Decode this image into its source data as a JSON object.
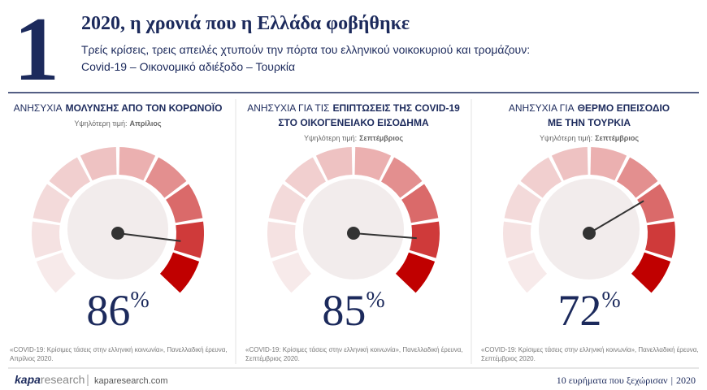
{
  "header": {
    "number": "1",
    "title": "2020, η χρονιά που η Ελλάδα φοβήθηκε",
    "subtitle_lines": [
      "Τρείς κρίσεις, τρεις απειλές χτυπούν την πόρτα του ελληνικού νοικοκυριού και τρομάζουν:",
      "Covid-19 – Οικονομικό αδιέξοδο – Τουρκία"
    ]
  },
  "gauge_range": [
    0,
    100
  ],
  "panels": [
    {
      "title_plain": "ΑΝΗΣΥΧΙΑ",
      "title_bold": [
        "ΜΟΛΥΝΣΗΣ ΑΠΟ ΤΟΝ ΚΟΡΩΝΟΪΟ"
      ],
      "peak_label": "Υψηλότερη τιμή:",
      "peak_value": "Απρίλιος",
      "value": 86,
      "unit": "%",
      "source_lines": [
        "«COVID-19: Κρίσιμες τάσεις στην ελληνική κοινωνία», Πανελλαδική έρευνα,",
        "Απρίλιος 2020."
      ]
    },
    {
      "title_plain": "ΑΝΗΣΥΧΙΑ ΓΙΑ ΤΙΣ",
      "title_bold": [
        "ΕΠΙΠΤΩΣΕΙΣ ΤΗΣ COVID-19",
        "ΣΤΟ ΟΙΚΟΓΕΝΕΙΑΚΟ ΕΙΣΟΔΗΜΑ"
      ],
      "peak_label": "Υψηλότερη τιμή:",
      "peak_value": "Σεπτέμβριος",
      "value": 85,
      "unit": "%",
      "source_lines": [
        "«COVID-19: Κρίσιμες τάσεις στην ελληνική κοινωνία», Πανελλαδική έρευνα,",
        "Σεπτέμβριος 2020."
      ]
    },
    {
      "title_plain": "ΑΝΗΣΥΧΙΑ ΓΙΑ",
      "title_bold": [
        "ΘΕΡΜΟ ΕΠΕΙΣΟΔΙΟ",
        "ΜΕ ΤΗΝ ΤΟΥΡΚΙΑ"
      ],
      "peak_label": "Υψηλότερη τιμή:",
      "peak_value": "Σεπτέμβριος",
      "value": 72,
      "unit": "%",
      "source_lines": [
        "«COVID-19: Κρίσιμες τάσεις στην ελληνική κοινωνία», Πανελλαδική έρευνα,",
        "Σεπτέμβριος 2020."
      ]
    }
  ],
  "footer": {
    "brand_bold": "kapa",
    "brand_light": "research",
    "url": "kaparesearch.com",
    "tagline": "10 ευρήματα που ξεχώρισαν",
    "year": "2020"
  }
}
